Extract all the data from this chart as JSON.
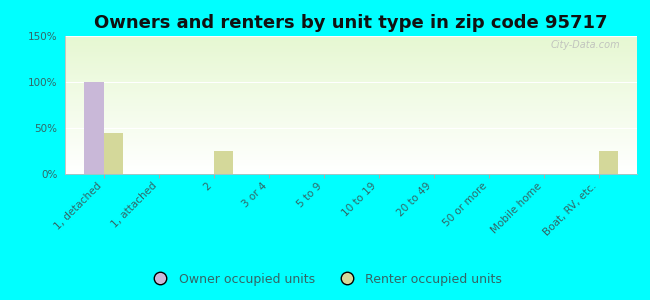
{
  "title": "Owners and renters by unit type in zip code 95717",
  "categories": [
    "1, detached",
    "1, attached",
    "2",
    "3 or 4",
    "5 to 9",
    "10 to 19",
    "20 to 49",
    "50 or more",
    "Mobile home",
    "Boat, RV, etc."
  ],
  "owner_values": [
    100,
    0,
    0,
    0,
    0,
    0,
    0,
    0,
    0,
    0
  ],
  "renter_values": [
    45,
    0,
    25,
    0,
    0,
    0,
    0,
    0,
    0,
    25
  ],
  "owner_color": "#c9b8d8",
  "renter_color": "#d4d89a",
  "background_color": "#00ffff",
  "ylim": [
    0,
    150
  ],
  "yticks": [
    0,
    50,
    100,
    150
  ],
  "watermark": "City-Data.com",
  "bar_width": 0.35,
  "title_fontsize": 13,
  "tick_fontsize": 7.5,
  "legend_fontsize": 9,
  "tick_color": "#559999",
  "label_color": "#336666"
}
